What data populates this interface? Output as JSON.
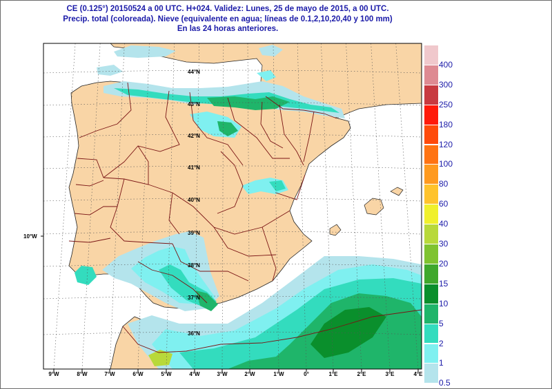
{
  "title": {
    "line1": "CE (0.125°) 20150524  a 00 UTC.  H+024. Validez: Lunes, 25 de mayo de 2015,  a  00 UTC.",
    "line2": "Precip. total (coloreada). Nieve (equivalente en agua; líneas de 0.1,2,10,20,40 y 100 mm)",
    "line3": "En las 24 horas anteriores."
  },
  "colors": {
    "land": "#f9d5a6",
    "sea": "#ffffff",
    "border": "#7a1414",
    "coast": "#222222",
    "grid": "#444444"
  },
  "legend": {
    "levels": [
      "0.5",
      "1",
      "2",
      "5",
      "10",
      "15",
      "20",
      "30",
      "40",
      "60",
      "80",
      "100",
      "120",
      "180",
      "250",
      "300",
      "400"
    ],
    "colors": [
      "#b4e4ec",
      "#7ff0f0",
      "#33dcbe",
      "#1fb56a",
      "#0a8f2c",
      "#3fa82c",
      "#7fc32f",
      "#b8d93a",
      "#f0f02c",
      "#ffc32c",
      "#ff9a1f",
      "#ff7312",
      "#ff4a0a",
      "#ff1a0a",
      "#c83a40",
      "#de8a92",
      "#f0c8cc"
    ]
  },
  "lat_labels": [
    "44°N",
    "43°N",
    "42°N",
    "41°N",
    "40°N",
    "39°N",
    "38°N",
    "37°N",
    "36°N"
  ],
  "lon_labels": [
    "9°W",
    "8°W",
    "7°W",
    "6°W",
    "5°W",
    "4°W",
    "3°W",
    "2°W",
    "1°W",
    "0°",
    "1°E",
    "2°E",
    "3°E",
    "4°E"
  ],
  "side_label": "10°W"
}
